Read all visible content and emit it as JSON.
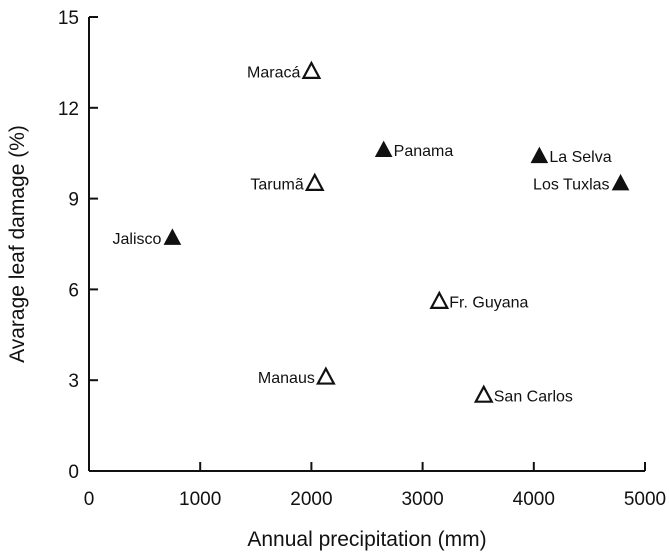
{
  "chart_data": {
    "type": "scatter",
    "xlabel": "Annual precipitation (mm)",
    "ylabel": "Avarage leaf damage (%)",
    "xlim": [
      0,
      5000
    ],
    "ylim": [
      0,
      15
    ],
    "xticks": [
      "0",
      "1000",
      "2000",
      "3000",
      "4000",
      "5000"
    ],
    "yticks": [
      "0",
      "3",
      "6",
      "9",
      "12",
      "15"
    ],
    "grid": false,
    "legend": "none",
    "marker_color": "#111111",
    "series": [
      {
        "marker": "filled-triangle",
        "points": [
          {
            "label": "Jalisco",
            "x": 750,
            "y": 7.7,
            "label_side": "left"
          },
          {
            "label": "Panama",
            "x": 2650,
            "y": 10.6,
            "label_side": "right"
          },
          {
            "label": "La Selva",
            "x": 4050,
            "y": 10.4,
            "label_side": "right"
          },
          {
            "label": "Los Tuxlas",
            "x": 4780,
            "y": 9.5,
            "label_side": "left"
          }
        ]
      },
      {
        "marker": "open-triangle",
        "points": [
          {
            "label": "Maracá",
            "x": 2000,
            "y": 13.2,
            "label_side": "left"
          },
          {
            "label": "Tarumã",
            "x": 2030,
            "y": 9.5,
            "label_side": "left"
          },
          {
            "label": "Manaus",
            "x": 2130,
            "y": 3.1,
            "label_side": "left"
          },
          {
            "label": "Fr. Guyana",
            "x": 3150,
            "y": 5.6,
            "label_side": "right"
          },
          {
            "label": "San Carlos",
            "x": 3550,
            "y": 2.5,
            "label_side": "right"
          }
        ]
      }
    ]
  }
}
